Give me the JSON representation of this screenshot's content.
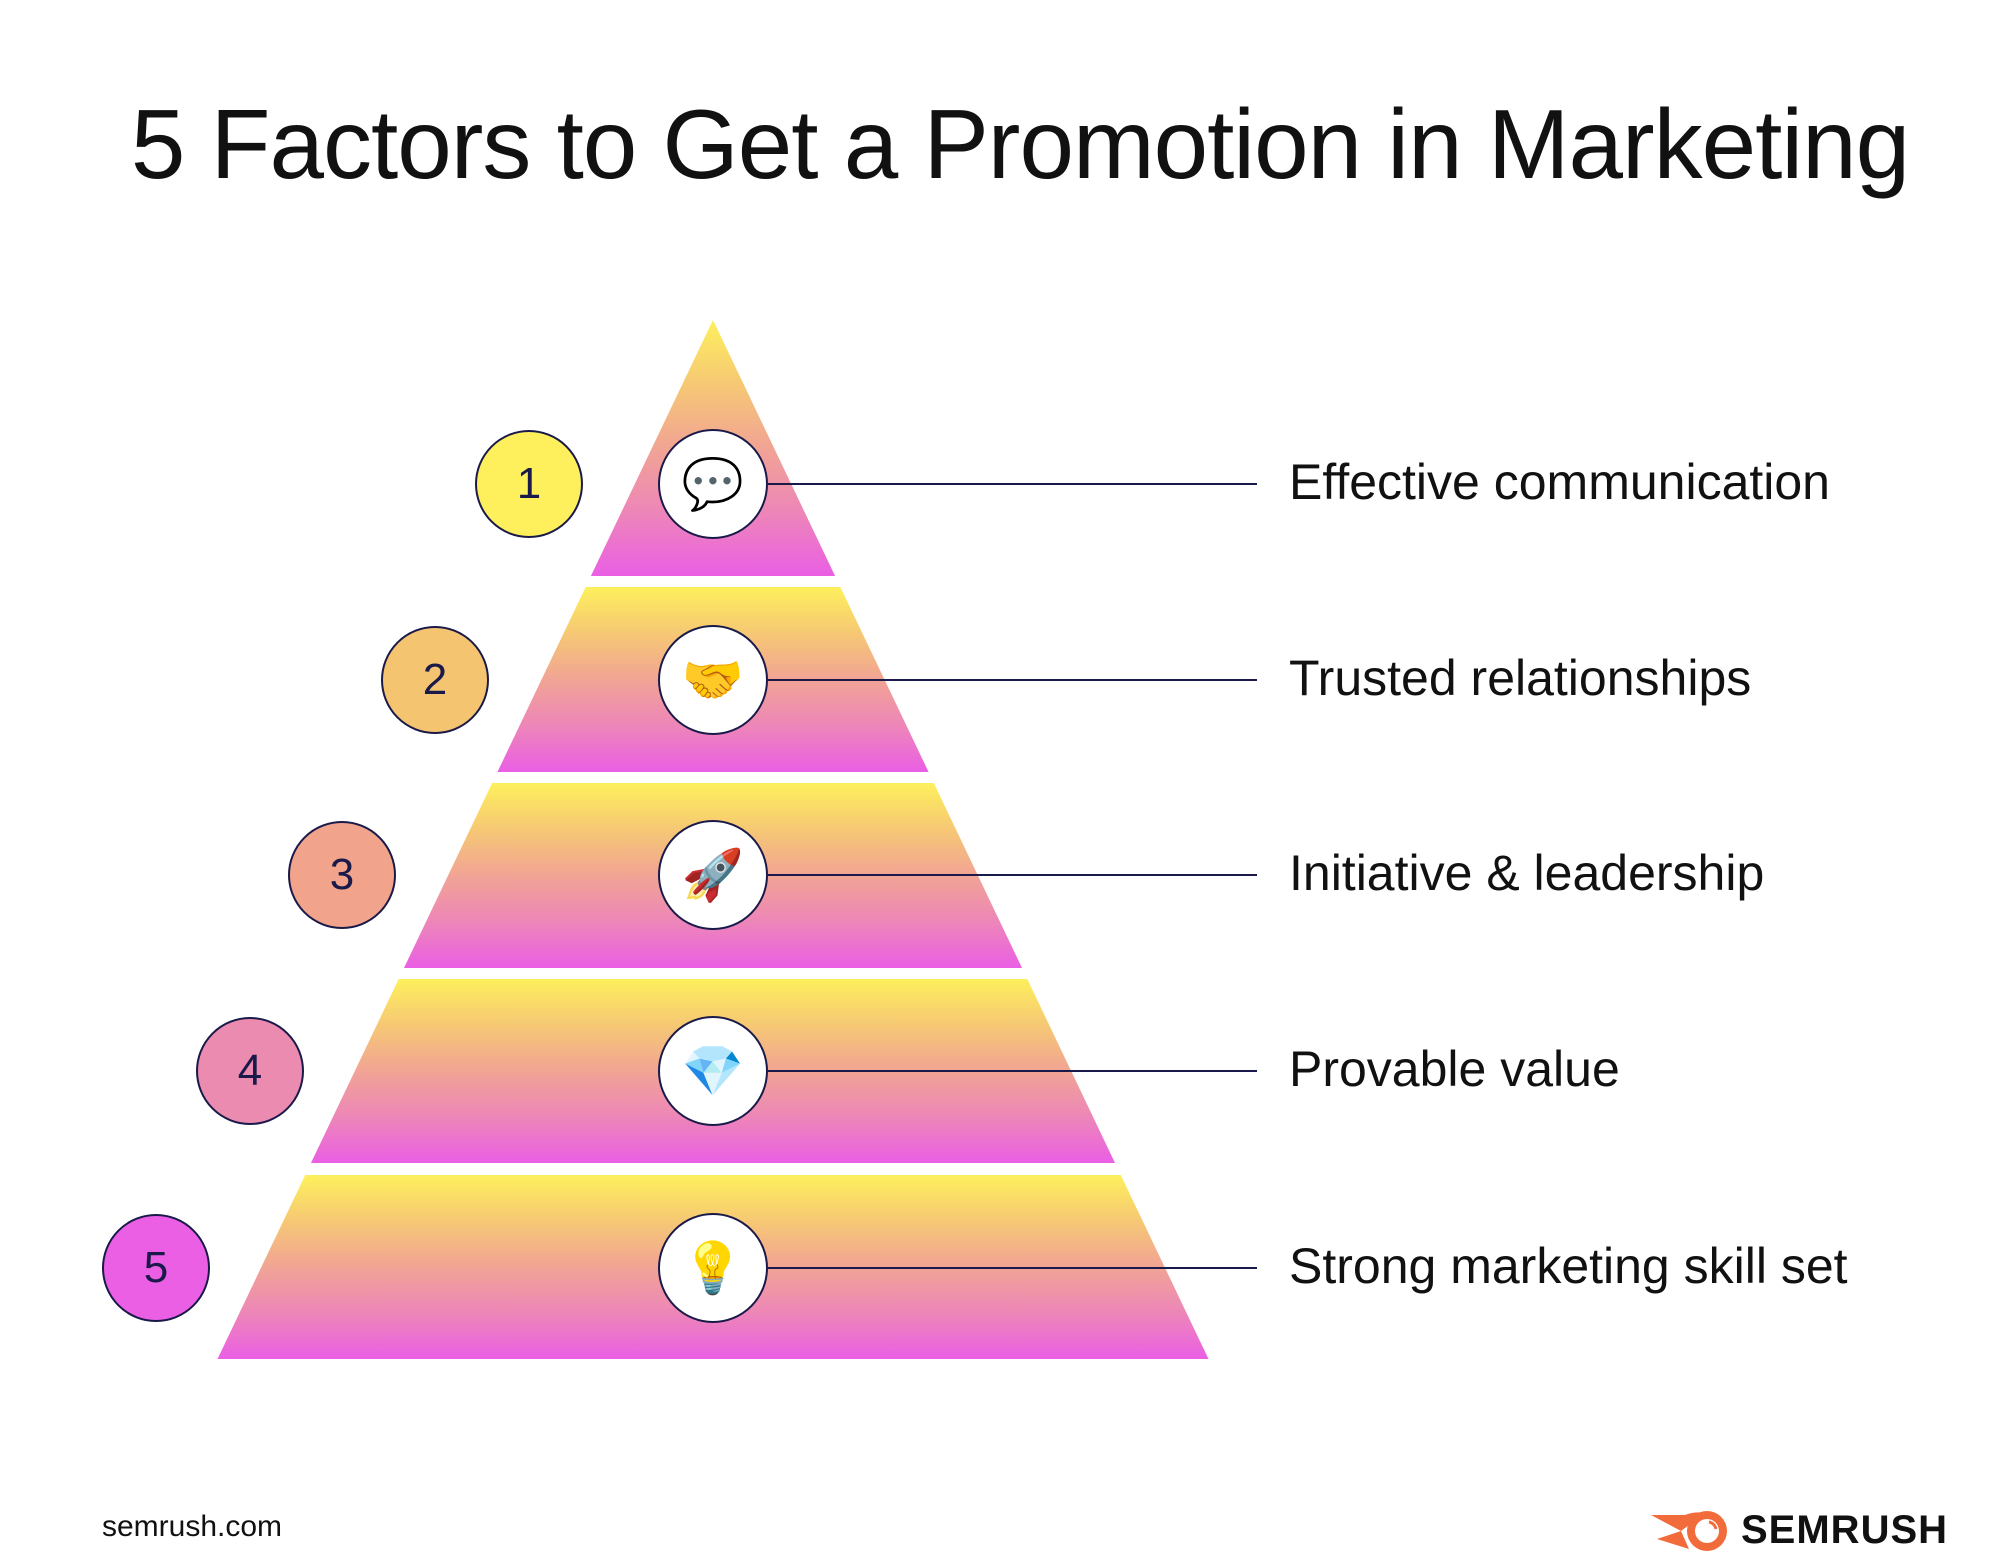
{
  "title": "5 Factors to Get a Promotion in Marketing",
  "colors": {
    "top": "#fdf05c",
    "bottom": "#ea5fe4",
    "outline": "#1a1a4a",
    "brand": "#f26b3a"
  },
  "factors": [
    {
      "number": "1",
      "label": "Effective communication",
      "icon": "speech-bubble-icon",
      "emoji": "💬",
      "color": "#fdf05c"
    },
    {
      "number": "2",
      "label": "Trusted relationships",
      "icon": "handshake-icon",
      "emoji": "🤝",
      "color": "#f4c471"
    },
    {
      "number": "3",
      "label": "Initiative & leadership",
      "icon": "rocket-icon",
      "emoji": "🚀",
      "color": "#f1a48b"
    },
    {
      "number": "4",
      "label": "Provable value",
      "icon": "gem-icon",
      "emoji": "💎",
      "color": "#ec8bb0"
    },
    {
      "number": "5",
      "label": "Strong marketing skill set",
      "icon": "light-bulb-icon",
      "emoji": "💡",
      "color": "#ea5fe4"
    }
  ],
  "footer": {
    "site": "semrush.com",
    "logo_text": "SEMRUSH"
  }
}
